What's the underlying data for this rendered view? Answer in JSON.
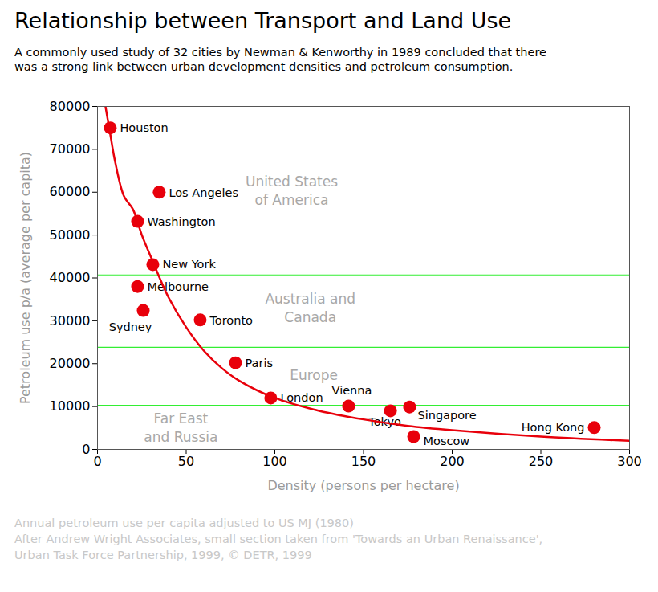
{
  "chart_data": {
    "type": "scatter",
    "title": "Relationship between Transport and Land Use",
    "subtitle": [
      "A commonly used study of 32 cities by Newman & Kenworthy in 1989 concluded that there",
      "was a strong link between urban development densities and petroleum consumption."
    ],
    "x_label": "Density (persons per hectare)",
    "y_label": "Petroleum use p/a (average per capita)",
    "xlim": [
      0,
      300
    ],
    "xticks": [
      0,
      50,
      100,
      150,
      200,
      250,
      300
    ],
    "ylim": [
      0,
      80000
    ],
    "yticks": [
      0,
      10000,
      20000,
      30000,
      40000,
      50000,
      60000,
      70000,
      80000
    ],
    "grid": false,
    "series": [
      {
        "type": "scatter",
        "color": "#e8000b",
        "labels": [
          "Houston",
          "Los Angeles",
          "Washington",
          "New York",
          "Melbourne",
          "Sydney",
          "Toronto",
          "Paris",
          "London",
          "Vienna",
          "Tokyo",
          "Singapore",
          "Moscow",
          "Hong Kong"
        ],
        "x": [
          7.2,
          34.8,
          22.6,
          31.2,
          22.6,
          25.8,
          57.9,
          77.8,
          97.7,
          141.6,
          165.2,
          176,
          178.3,
          280.1
        ],
        "values": [
          75000,
          60000,
          53200,
          43100,
          38000,
          32400,
          30200,
          20200,
          12000,
          10100,
          9000,
          9900,
          3000,
          5100
        ]
      },
      {
        "type": "line",
        "color": "#e8000b",
        "x": [
          4.5,
          7,
          10,
          15,
          20,
          25,
          30,
          40,
          50,
          60,
          70,
          80,
          100,
          125,
          150,
          175,
          200,
          250,
          300
        ],
        "values": [
          80000,
          74000,
          67000,
          59000,
          56000,
          50000,
          45000,
          35500,
          28500,
          23000,
          19000,
          16000,
          12000,
          9000,
          7000,
          5500,
          4500,
          3000,
          2000
        ]
      }
    ],
    "reference_lines": {
      "values": [
        40700,
        23800,
        10300
      ],
      "color": "#33ee33"
    },
    "annotations": [
      {
        "text": "United States\nof America",
        "x": 109.5,
        "y": 60500
      },
      {
        "text": "Australia and\nCanada",
        "x": 120,
        "y": 33200
      },
      {
        "text": "Europe",
        "x": 122,
        "y": 17600
      },
      {
        "text": "Far East\nand Russia",
        "x": 47,
        "y": 5300
      }
    ],
    "caption": [
      "Annual petroleum use per capita adjusted to US MJ (1980)",
      "After Andrew Wright Associates, small section taken from 'Towards an Urban Renaissance',",
      "Urban Task Force Partnership, 1999, © DETR, 1999"
    ]
  }
}
